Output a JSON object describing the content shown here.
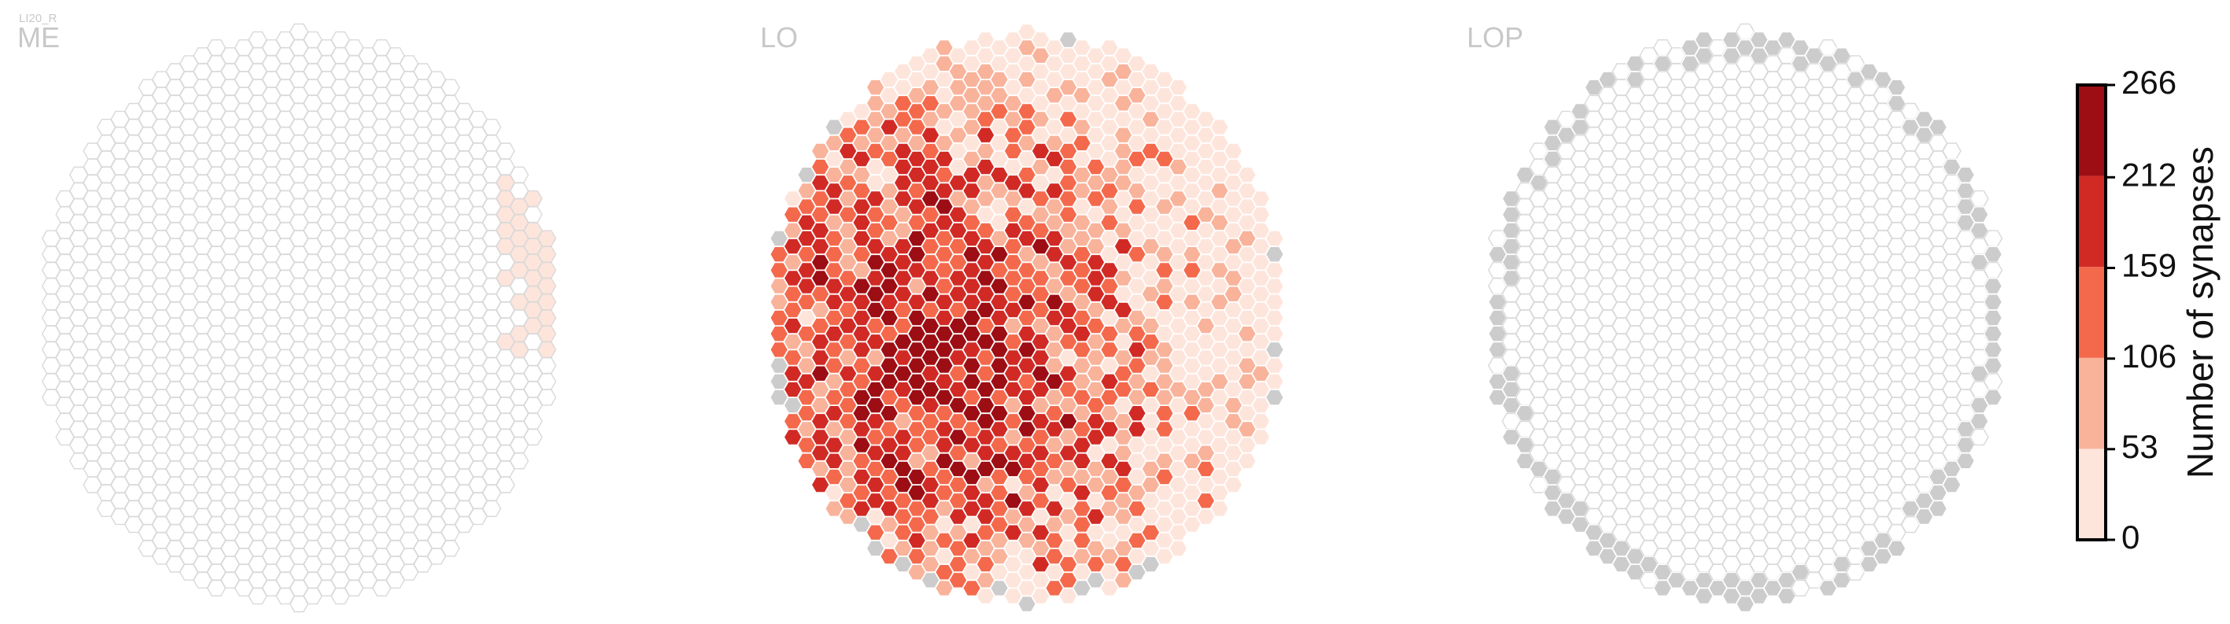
{
  "figure": {
    "label": "LI20_R"
  },
  "colors": {
    "empty_stroke": "#d9d9d9",
    "empty_fill": "#ffffff",
    "absent_fill": "#cccccc",
    "bins": [
      "#fee5dc",
      "#f9b39b",
      "#f4694c",
      "#d12a25",
      "#9c0e14"
    ]
  },
  "chart_data": {
    "type": "heatmap",
    "layout": "hexagonal column grid (optic lobe)",
    "panels": [
      {
        "name": "ME",
        "lit_cells": "small cluster at right edge, values in lowest bin (0-53)",
        "absent_cells": "none"
      },
      {
        "name": "LO",
        "lit_cells": "nearly all columns, values spanning 0-266, peak near center-left",
        "absent_cells": "a few at the top and edges"
      },
      {
        "name": "LOP",
        "lit_cells": "none",
        "absent_cells": "ring of grey columns along the boundary"
      }
    ],
    "colorbar": {
      "label": "Number of synapses",
      "ticks": [
        0,
        53,
        106,
        159,
        212,
        266
      ],
      "ticklabels": [
        "0",
        "53",
        "106",
        "159",
        "212",
        "266"
      ],
      "range": [
        0,
        266
      ],
      "bins": 5
    }
  }
}
